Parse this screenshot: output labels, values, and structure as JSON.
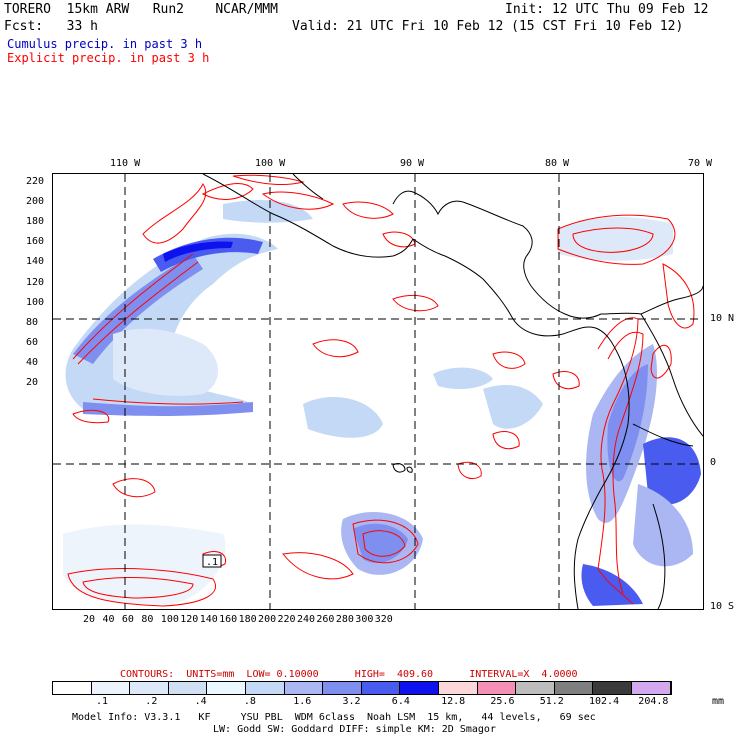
{
  "header": {
    "line1_left": "TORERO  15km ARW   Run2    NCAR/MMM",
    "line1_right": "Init: 12 UTC Thu 09 Feb 12",
    "line2_left": "Fcst:   33 h",
    "line2_right": "Valid: 21 UTC Fri 10 Feb 12 (15 CST Fri 10 Feb 12)",
    "line3": "Cumulus precip. in past 3 h",
    "line4": "Explicit precip. in past 3 h"
  },
  "colors": {
    "cumulus_title": "#0000c0",
    "explicit_title": "#ff0000",
    "contour": "#ff0000",
    "coastline": "#000000"
  },
  "map": {
    "top_lon_labels": [
      "110 W",
      "100 W",
      "90 W",
      "80 W",
      "70 W"
    ],
    "right_lat_labels": [
      "10 N",
      "0",
      "10 S"
    ],
    "y_axis_ticks": [
      "220",
      "200",
      "180",
      "160",
      "140",
      "120",
      "100",
      "80",
      "60",
      "40",
      "20"
    ],
    "x_axis_ticks": [
      "20",
      "40",
      "60",
      "80",
      "100",
      "120",
      "140",
      "160",
      "180",
      "200",
      "220",
      "240",
      "260",
      "280",
      "300",
      "320"
    ],
    "box_label": ".1"
  },
  "contours_info": "CONTOURS:  UNITS=mm  LOW= 0.10000      HIGH=  409.60      INTERVAL=X  4.0000",
  "colorbar": {
    "colors": [
      "#ffffff",
      "#eef4fb",
      "#dde9f8",
      "#cfe0f5",
      "#eaf8ff",
      "#c3d9f6",
      "#aab7f2",
      "#7f8ff0",
      "#4a5cf0",
      "#0d12ef",
      "#fbd7d9",
      "#f48fb6",
      "#bdbdbd",
      "#7f7f7f",
      "#3a3a3a",
      "#d2a8ef"
    ],
    "labels": [
      ".1",
      ".2",
      ".4",
      ".8",
      "1.6",
      "3.2",
      "6.4",
      "12.8",
      "25.6",
      "51.2",
      "102.4",
      "204.8"
    ],
    "units": "mm"
  },
  "footer": {
    "line1": "Model Info: V3.3.1   KF     YSU PBL  WDM 6class  Noah LSM  15 km,   44 levels,   69 sec",
    "line2": "LW: Godd SW: Goddard DIFF: simple KM: 2D Smagor"
  }
}
